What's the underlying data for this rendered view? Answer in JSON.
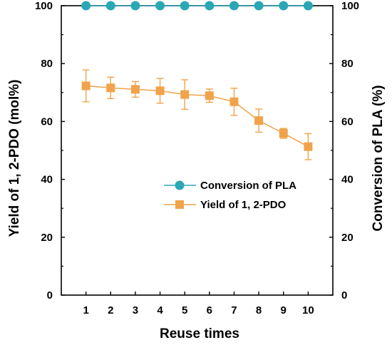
{
  "chart_data": {
    "type": "line",
    "x": [
      1,
      2,
      3,
      4,
      5,
      6,
      7,
      8,
      9,
      10
    ],
    "xlabel": "Reuse times",
    "ylabel_left": "Yield of 1, 2-PDO (mol%)",
    "ylabel_right": "Conversion of PLA (%)",
    "xlim": [
      0,
      11
    ],
    "ylim": [
      0,
      100
    ],
    "xticks": [
      "1",
      "2",
      "3",
      "4",
      "5",
      "6",
      "7",
      "8",
      "9",
      "10"
    ],
    "yticks_left": [
      "0",
      "20",
      "40",
      "60",
      "80",
      "100"
    ],
    "yticks_right": [
      "0",
      "20",
      "40",
      "60",
      "80",
      "100"
    ],
    "grid": false,
    "legend_position": "center-right",
    "series": [
      {
        "name": "Conversion of PLA",
        "axis": "right",
        "marker": "circle",
        "color": "#2aa7b5",
        "values": [
          100,
          100,
          100,
          100,
          100,
          100,
          100,
          100,
          100,
          100
        ],
        "errors": [
          0,
          0,
          0,
          0,
          0,
          0,
          0,
          0,
          0,
          0
        ]
      },
      {
        "name": "Yield of 1, 2-PDO",
        "axis": "left",
        "marker": "square",
        "color": "#f0a34a",
        "values": [
          72.3,
          71.6,
          71.1,
          70.6,
          69.3,
          68.9,
          66.8,
          60.3,
          55.9,
          51.3
        ],
        "errors": [
          5.5,
          3.7,
          2.7,
          4.3,
          5.1,
          2.3,
          4.7,
          4.0,
          1.7,
          4.5
        ]
      }
    ]
  }
}
